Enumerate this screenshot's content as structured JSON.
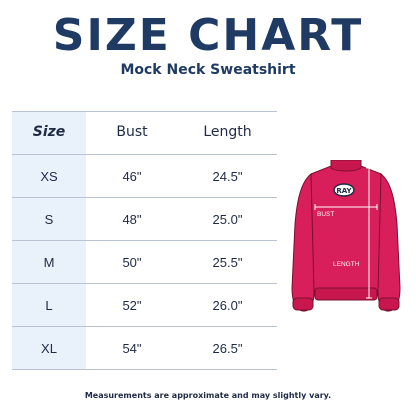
{
  "title": "SIZE CHART",
  "subtitle": "Mock Neck Sweatshirt",
  "table": {
    "headers": {
      "size": "Size",
      "bust": "Bust",
      "length": "Length"
    },
    "rows": [
      {
        "size": "XS",
        "bust": "46\"",
        "length": "24.5\""
      },
      {
        "size": "S",
        "bust": "48\"",
        "length": "25.0\""
      },
      {
        "size": "M",
        "bust": "50\"",
        "length": "25.5\""
      },
      {
        "size": "L",
        "bust": "52\"",
        "length": "26.0\""
      },
      {
        "size": "XL",
        "bust": "54\"",
        "length": "26.5\""
      }
    ]
  },
  "garment": {
    "logo_text": "RAY",
    "bust_label": "BUST",
    "length_label": "LENGTH",
    "color": "#d81e5b"
  },
  "colors": {
    "title": "#1f3a63",
    "size_column_bg": "#e9f1fb",
    "rule": "#b8c4d3"
  },
  "footnote": "Measurements are approximate and may slightly vary."
}
